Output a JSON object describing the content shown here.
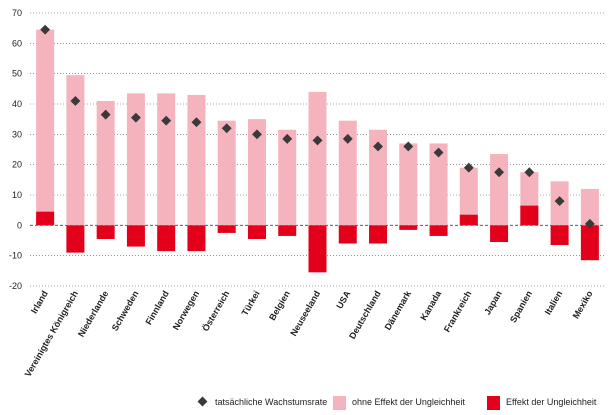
{
  "chart_data": {
    "type": "bar",
    "categories": [
      "Irland",
      "Vereinigtes Königreich",
      "Niederlande",
      "Schweden",
      "Finnland",
      "Norwegen",
      "Österreich",
      "Türkei",
      "Belgien",
      "Neuseeland",
      "USA",
      "Deutschland",
      "Dänemark",
      "Kanada",
      "Frankreich",
      "Japan",
      "Spanien",
      "Italien",
      "Mexiko"
    ],
    "ylim": [
      -20,
      70
    ],
    "yticks": [
      -20,
      -10,
      0,
      10,
      20,
      30,
      40,
      50,
      60,
      70
    ],
    "grid": true,
    "legend_position": "bottom",
    "series": [
      {
        "name": "tatsächliche Wachstumsrate",
        "kind": "marker",
        "color": "#3a3a3a",
        "values": [
          64.5,
          41,
          36.5,
          35.5,
          34.5,
          34,
          32,
          30,
          28.5,
          28,
          28.5,
          26,
          26,
          24,
          19,
          17.5,
          17.5,
          8,
          0.5
        ]
      },
      {
        "name": "ohne Effekt der Ungleichheit",
        "kind": "bar",
        "color": "#f5b4bd",
        "values": [
          64.5,
          49.5,
          41,
          43.5,
          43.5,
          43,
          34.5,
          35,
          31.5,
          44,
          34.5,
          31.5,
          27,
          27,
          19,
          23.5,
          17.5,
          14.5,
          12
        ]
      },
      {
        "name": "Effekt der Ungleichheit",
        "kind": "bar",
        "color": "#e3001b",
        "values": [
          4.5,
          -9,
          -4.5,
          -7,
          -8.5,
          -8.5,
          -2.5,
          -4.5,
          -3.5,
          -15.5,
          -6,
          -6,
          -1.5,
          -3.5,
          3.5,
          -5.5,
          6.5,
          -6.5,
          -11.5
        ]
      }
    ]
  }
}
